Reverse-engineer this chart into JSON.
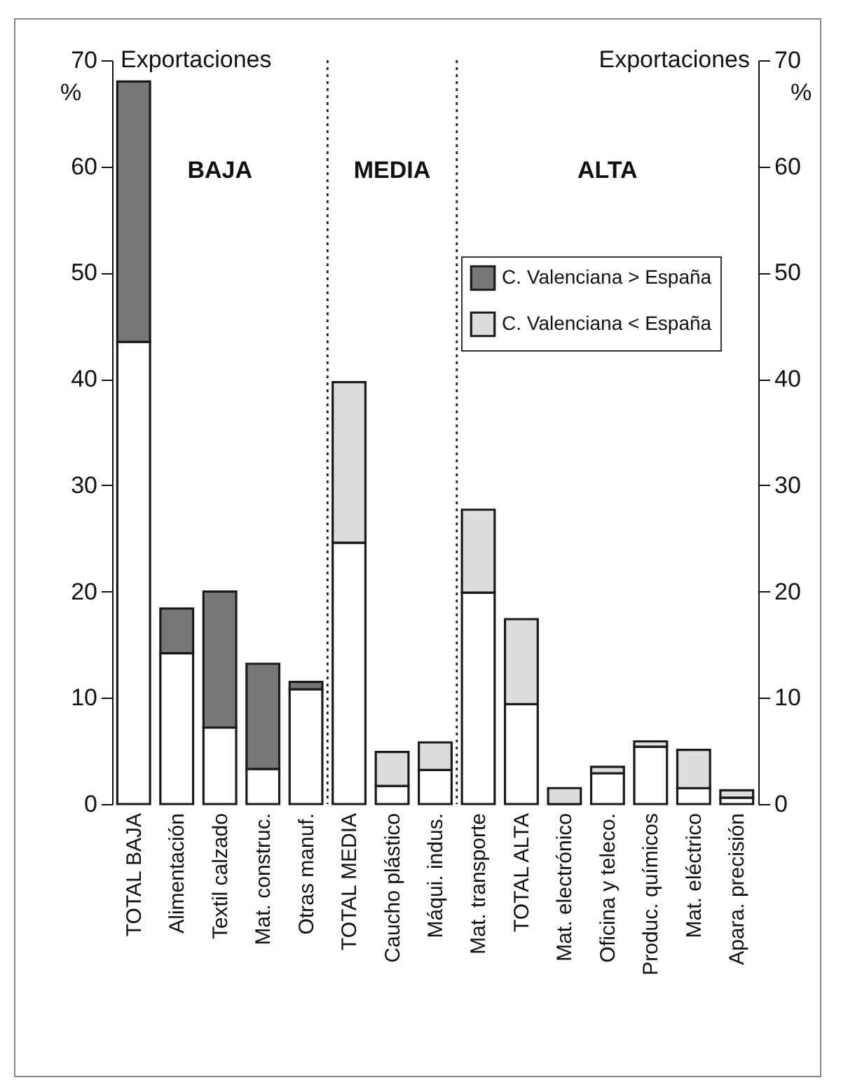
{
  "chart_data": {
    "type": "bar",
    "stacked": true,
    "categories": [
      "TOTAL BAJA",
      "Alimentación",
      "Textil calzado",
      "Mat. construc.",
      "Otras manuf.",
      "TOTAL MEDIA",
      "Caucho plástico",
      "Máqui. indus.",
      "Mat. transporte",
      "TOTAL ALTA",
      "Mat. electrónico",
      "Oficina y teleco.",
      "Produc. químicos",
      "Mat. eléctrico",
      "Apara. precisión"
    ],
    "series": [
      {
        "color": "#ffffff",
        "values": [
          43.5,
          14.2,
          7.2,
          3.3,
          10.8,
          24.6,
          1.7,
          3.2,
          19.9,
          9.4,
          0,
          2.9,
          5.4,
          1.5,
          0.6
        ]
      },
      {
        "name": "C. Valenciana > España",
        "color": "#77787a",
        "values": [
          24.5,
          4.2,
          12.8,
          9.9,
          0.7,
          null,
          null,
          null,
          null,
          null,
          null,
          null,
          null,
          null,
          null
        ]
      },
      {
        "name": "C. Valenciana < España",
        "color": "#dcdddf",
        "values": [
          null,
          null,
          null,
          null,
          null,
          15.1,
          3.2,
          2.6,
          7.8,
          8.0,
          1.5,
          0.6,
          0.5,
          3.6,
          0.7
        ]
      }
    ],
    "ylim": [
      0,
      70
    ],
    "yticks": [
      0,
      10,
      20,
      30,
      40,
      50,
      60,
      70
    ],
    "y2lim": [
      0,
      70
    ],
    "y2ticks": [
      0,
      10,
      20,
      30,
      40,
      50,
      60,
      70
    ],
    "ylabel": "%",
    "y2label": "%",
    "annotations": [
      "Exportaciones",
      "Exportaciones",
      "BAJA",
      "MEDIA",
      "ALTA"
    ],
    "legend": "top right",
    "grid": false
  }
}
